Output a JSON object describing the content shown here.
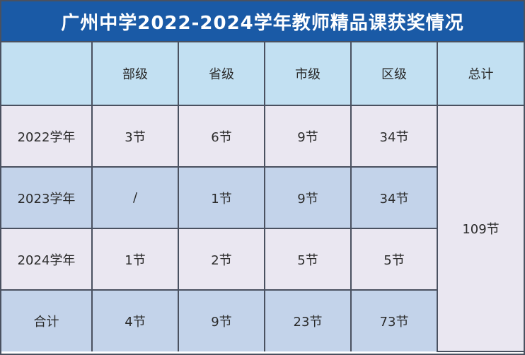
{
  "title": "广州中学2022-2024学年教师精品课获奖情况",
  "headers": [
    "",
    "部级",
    "省级",
    "市级",
    "区级",
    "总计"
  ],
  "rows": [
    {
      "label": "2022学年",
      "cells": [
        "3节",
        "6节",
        "9节",
        "34节"
      ]
    },
    {
      "label": "2023学年",
      "cells": [
        "/",
        "1节",
        "9节",
        "34节"
      ]
    },
    {
      "label": "2024学年",
      "cells": [
        "1节",
        "2节",
        "5节",
        "5节"
      ]
    },
    {
      "label": "合计",
      "cells": [
        "4节",
        "9节",
        "23节",
        "73节"
      ]
    }
  ],
  "total": "109节",
  "colors": {
    "title_bg": "#1a5aa6",
    "header_bg": "#c2e0f2",
    "row_light": "#eae7f1",
    "row_dark": "#c3d3ea",
    "border": "#4a5160"
  }
}
